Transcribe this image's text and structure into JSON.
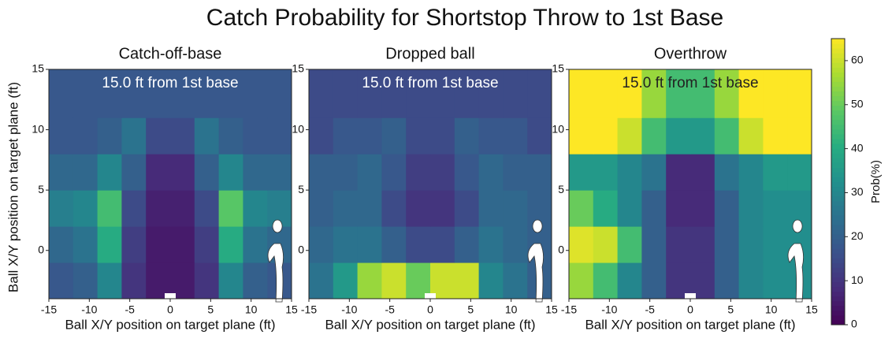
{
  "title": "Catch Probability for Shortstop Throw to 1st Base",
  "colorbar": {
    "label": "Prob(%)",
    "clim": [
      0,
      65
    ],
    "ticks": [
      0,
      10,
      20,
      30,
      40,
      50,
      60
    ],
    "colormap": "viridis"
  },
  "chart_data": [
    {
      "type": "heatmap",
      "title": "Catch-off-base",
      "annotation": "15.0 ft from 1st base",
      "xlabel": "Ball X/Y position on target plane (ft)",
      "ylabel": "Ball X/Y position on target plane (ft)",
      "xlim": [
        -15,
        15
      ],
      "ylim": [
        -4,
        15
      ],
      "xticks": [
        -15,
        -10,
        -5,
        0,
        5,
        10,
        15
      ],
      "yticks": [
        0,
        5,
        10,
        15
      ],
      "x_edges": [
        -15,
        -12,
        -9,
        -6,
        -3,
        0,
        3,
        6,
        9,
        12,
        15
      ],
      "y_edges": [
        -4,
        -1,
        2,
        5,
        8,
        11,
        15
      ],
      "z": [
        [
          18,
          20,
          30,
          10,
          5,
          5,
          10,
          30,
          20,
          18
        ],
        [
          22,
          25,
          40,
          12,
          5,
          5,
          12,
          40,
          25,
          22
        ],
        [
          28,
          30,
          45,
          15,
          6,
          6,
          15,
          48,
          30,
          28
        ],
        [
          22,
          22,
          30,
          20,
          8,
          8,
          20,
          30,
          22,
          22
        ],
        [
          18,
          18,
          20,
          25,
          15,
          15,
          25,
          20,
          18,
          18
        ],
        [
          18,
          18,
          18,
          18,
          18,
          18,
          18,
          18,
          18,
          18
        ]
      ]
    },
    {
      "type": "heatmap",
      "title": "Dropped ball",
      "annotation": "15.0 ft from 1st base",
      "xlabel": "Ball X/Y position on target plane (ft)",
      "xlim": [
        -15,
        15
      ],
      "ylim": [
        -4,
        15
      ],
      "xticks": [
        -15,
        -10,
        -5,
        0,
        5,
        10,
        15
      ],
      "yticks": [
        0,
        5,
        10,
        15
      ],
      "x_edges": [
        -15,
        -12,
        -9,
        -6,
        -3,
        0,
        3,
        6,
        9,
        12,
        15
      ],
      "y_edges": [
        -4,
        -1,
        2,
        5,
        8,
        11,
        15
      ],
      "z": [
        [
          25,
          35,
          55,
          60,
          50,
          60,
          60,
          30,
          25,
          20
        ],
        [
          22,
          25,
          25,
          20,
          15,
          15,
          20,
          25,
          22,
          20
        ],
        [
          20,
          22,
          22,
          15,
          10,
          10,
          15,
          22,
          22,
          20
        ],
        [
          20,
          20,
          22,
          18,
          12,
          12,
          18,
          22,
          20,
          20
        ],
        [
          15,
          18,
          18,
          20,
          15,
          15,
          20,
          18,
          18,
          15
        ],
        [
          15,
          15,
          15,
          15,
          15,
          15,
          15,
          15,
          15,
          15
        ]
      ]
    },
    {
      "type": "heatmap",
      "title": "Overthrow",
      "annotation": "15.0 ft from 1st base",
      "xlabel": "Ball X/Y position on target plane (ft)",
      "xlim": [
        -15,
        15
      ],
      "ylim": [
        -4,
        15
      ],
      "xticks": [
        -15,
        -10,
        -5,
        0,
        5,
        10,
        15
      ],
      "yticks": [
        0,
        5,
        10,
        15
      ],
      "x_edges": [
        -15,
        -12,
        -9,
        -6,
        -3,
        0,
        3,
        6,
        9,
        12,
        15
      ],
      "y_edges": [
        -4,
        -1,
        2,
        5,
        8,
        11,
        15
      ],
      "z": [
        [
          55,
          45,
          30,
          20,
          10,
          10,
          20,
          30,
          32,
          32
        ],
        [
          62,
          60,
          45,
          20,
          10,
          10,
          20,
          30,
          32,
          32
        ],
        [
          50,
          40,
          30,
          20,
          8,
          8,
          20,
          30,
          32,
          32
        ],
        [
          35,
          35,
          30,
          25,
          8,
          8,
          25,
          30,
          35,
          35
        ],
        [
          65,
          65,
          60,
          45,
          35,
          35,
          45,
          60,
          65,
          65
        ],
        [
          65,
          65,
          65,
          55,
          45,
          45,
          55,
          65,
          65,
          65
        ]
      ]
    }
  ]
}
